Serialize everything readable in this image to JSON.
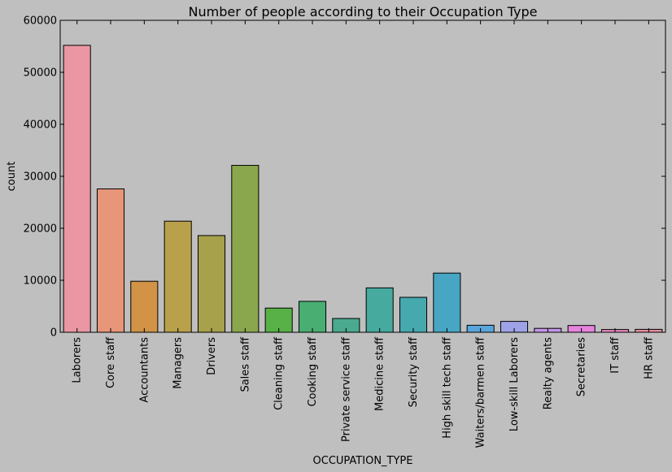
{
  "chart_data": {
    "type": "bar",
    "title": "Number of people according to their Occupation Type",
    "xlabel": "OCCUPATION_TYPE",
    "ylabel": "count",
    "ylim": [
      0,
      60000
    ],
    "yticks": [
      "0",
      "10000",
      "20000",
      "30000",
      "40000",
      "50000",
      "60000"
    ],
    "grid": false,
    "categories": [
      "Laborers",
      "Core staff",
      "Accountants",
      "Managers",
      "Drivers",
      "Sales staff",
      "Cleaning staff",
      "Cooking staff",
      "Private service staff",
      "Medicine staff",
      "Security staff",
      "High skill tech staff",
      "Waiters/barmen staff",
      "Low-skill Laborers",
      "Realty agents",
      "Secretaries",
      "IT staff",
      "HR staff"
    ],
    "values": [
      55186,
      27570,
      9813,
      21371,
      18603,
      32102,
      4653,
      5946,
      2652,
      8537,
      6721,
      11380,
      1348,
      2093,
      751,
      1305,
      526,
      563
    ],
    "colors": [
      "#ea97a3",
      "#e8967a",
      "#d29346",
      "#b9a04b",
      "#a6a14a",
      "#8aa74d",
      "#58b146",
      "#48ae72",
      "#4aaa8f",
      "#46aa9e",
      "#46a9ae",
      "#47a6c3",
      "#5aa5dc",
      "#9ea3e8",
      "#c495e8",
      "#e583dd",
      "#e98ac0",
      "#e58d9f"
    ]
  }
}
